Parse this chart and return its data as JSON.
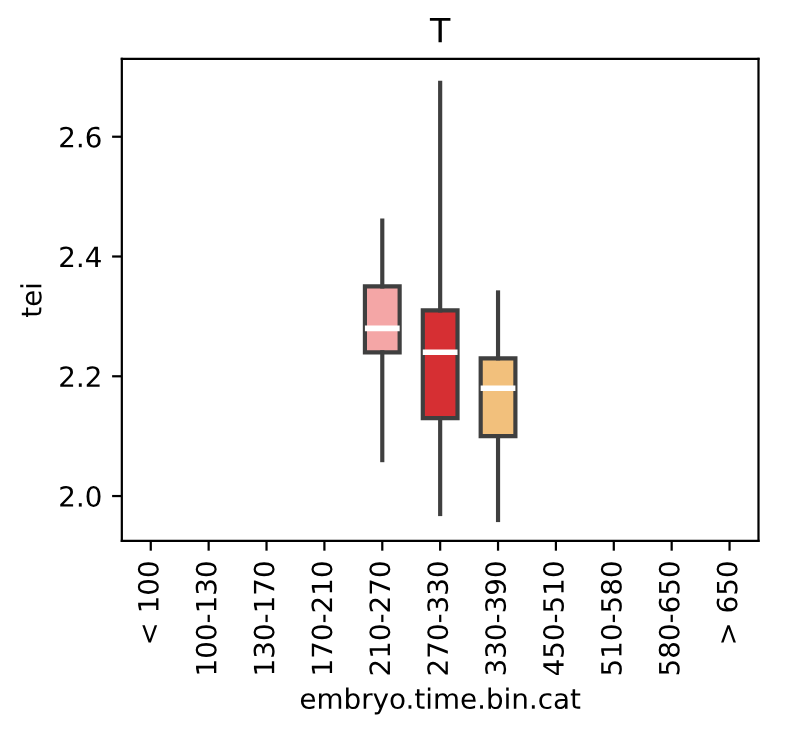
{
  "chart_data": {
    "type": "box",
    "title": "T",
    "xlabel": "embryo.time.bin.cat",
    "ylabel": "tei",
    "categories": [
      "< 100",
      "100-130",
      "130-170",
      "170-210",
      "210-270",
      "270-330",
      "330-390",
      "450-510",
      "510-580",
      "580-650",
      "> 650"
    ],
    "boxes": [
      null,
      null,
      null,
      null,
      {
        "low": 2.06,
        "q1": 2.24,
        "median": 2.28,
        "q3": 2.35,
        "high": 2.46
      },
      {
        "low": 1.97,
        "q1": 2.13,
        "median": 2.24,
        "q3": 2.31,
        "high": 2.69
      },
      {
        "low": 1.96,
        "q1": 2.1,
        "median": 2.18,
        "q3": 2.23,
        "high": 2.34
      },
      null,
      null,
      null,
      null
    ],
    "colors": [
      null,
      null,
      null,
      null,
      "#f4a6a6",
      "#d62f33",
      "#f2c07c",
      null,
      null,
      null,
      null
    ],
    "ylim": [
      1.925,
      2.73
    ],
    "yticks": [
      {
        "value": 2.0,
        "label": "2.0"
      },
      {
        "value": 2.2,
        "label": "2.2"
      },
      {
        "value": 2.4,
        "label": "2.4"
      },
      {
        "value": 2.6,
        "label": "2.6"
      }
    ],
    "grid": false
  }
}
